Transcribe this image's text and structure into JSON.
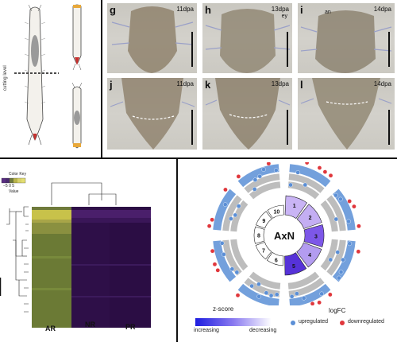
{
  "schematic": {
    "cutting_label": "cutting level"
  },
  "micrographs": [
    {
      "letter": "g",
      "time": "11dpa"
    },
    {
      "letter": "h",
      "time": "13dpa",
      "extra": "ey"
    },
    {
      "letter": "i",
      "time": "14dpa",
      "extra": "an"
    },
    {
      "letter": "j",
      "time": "11dpa"
    },
    {
      "letter": "k",
      "time": "13dpa"
    },
    {
      "letter": "l",
      "time": "14dpa"
    }
  ],
  "heatmap": {
    "key_title": "Color Key",
    "key_ticks": "−5  0  5",
    "key_value_label": "Value",
    "columns": [
      "AR",
      "NR",
      "PR"
    ],
    "colors": {
      "low": "#2b0a3d",
      "mid": "#4a1f6b",
      "high": "#c8c24a"
    }
  },
  "circos": {
    "center_label": "AxN",
    "segments": [
      "1",
      "2",
      "3",
      "4",
      "5",
      "6",
      "7",
      "8",
      "9",
      "10"
    ],
    "zscore_title": "z-score",
    "zscore_low": "increasing",
    "zscore_high": "decreasing",
    "logfc_title": "logFC",
    "legend_up": "upregulated",
    "legend_down": "downregulated",
    "colors": {
      "up": "#5b8fd6",
      "down": "#e0373c",
      "ring": "#bdbdbd"
    }
  }
}
